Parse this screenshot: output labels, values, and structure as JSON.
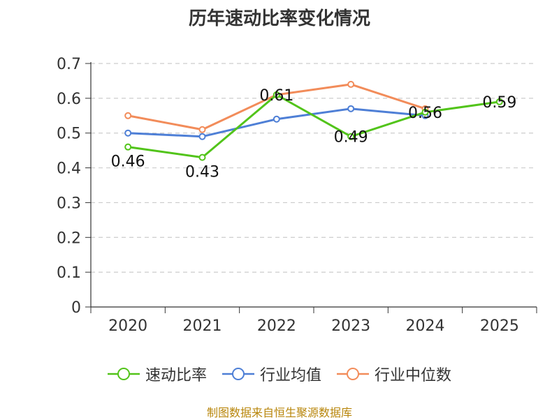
{
  "chart_data": {
    "type": "line",
    "title": "历年速动比率变化情况",
    "categories": [
      "2020",
      "2021",
      "2022",
      "2023",
      "2024",
      "2025"
    ],
    "ylim": [
      0,
      0.7
    ],
    "yticks": [
      "0",
      "0.1",
      "0.2",
      "0.3",
      "0.4",
      "0.5",
      "0.6",
      "0.7"
    ],
    "ytick_values": [
      0,
      0.1,
      0.2,
      0.3,
      0.4,
      0.5,
      0.6,
      0.7
    ],
    "grid": true,
    "legend_position": "bottom",
    "series": [
      {
        "name": "速动比率",
        "color": "#52c41a",
        "values": [
          0.46,
          0.43,
          0.61,
          0.49,
          0.56,
          0.59
        ],
        "labels": [
          "0.46",
          "0.43",
          "0.61",
          "0.49",
          "0.56",
          "0.59"
        ]
      },
      {
        "name": "行业均值",
        "color": "#4e7fd6",
        "values": [
          0.5,
          0.49,
          0.54,
          0.57,
          0.55,
          null
        ]
      },
      {
        "name": "行业中位数",
        "color": "#f28c5a",
        "values": [
          0.55,
          0.51,
          0.61,
          0.64,
          0.57,
          null
        ]
      }
    ]
  },
  "footer": "制图数据来自恒生聚源数据库"
}
